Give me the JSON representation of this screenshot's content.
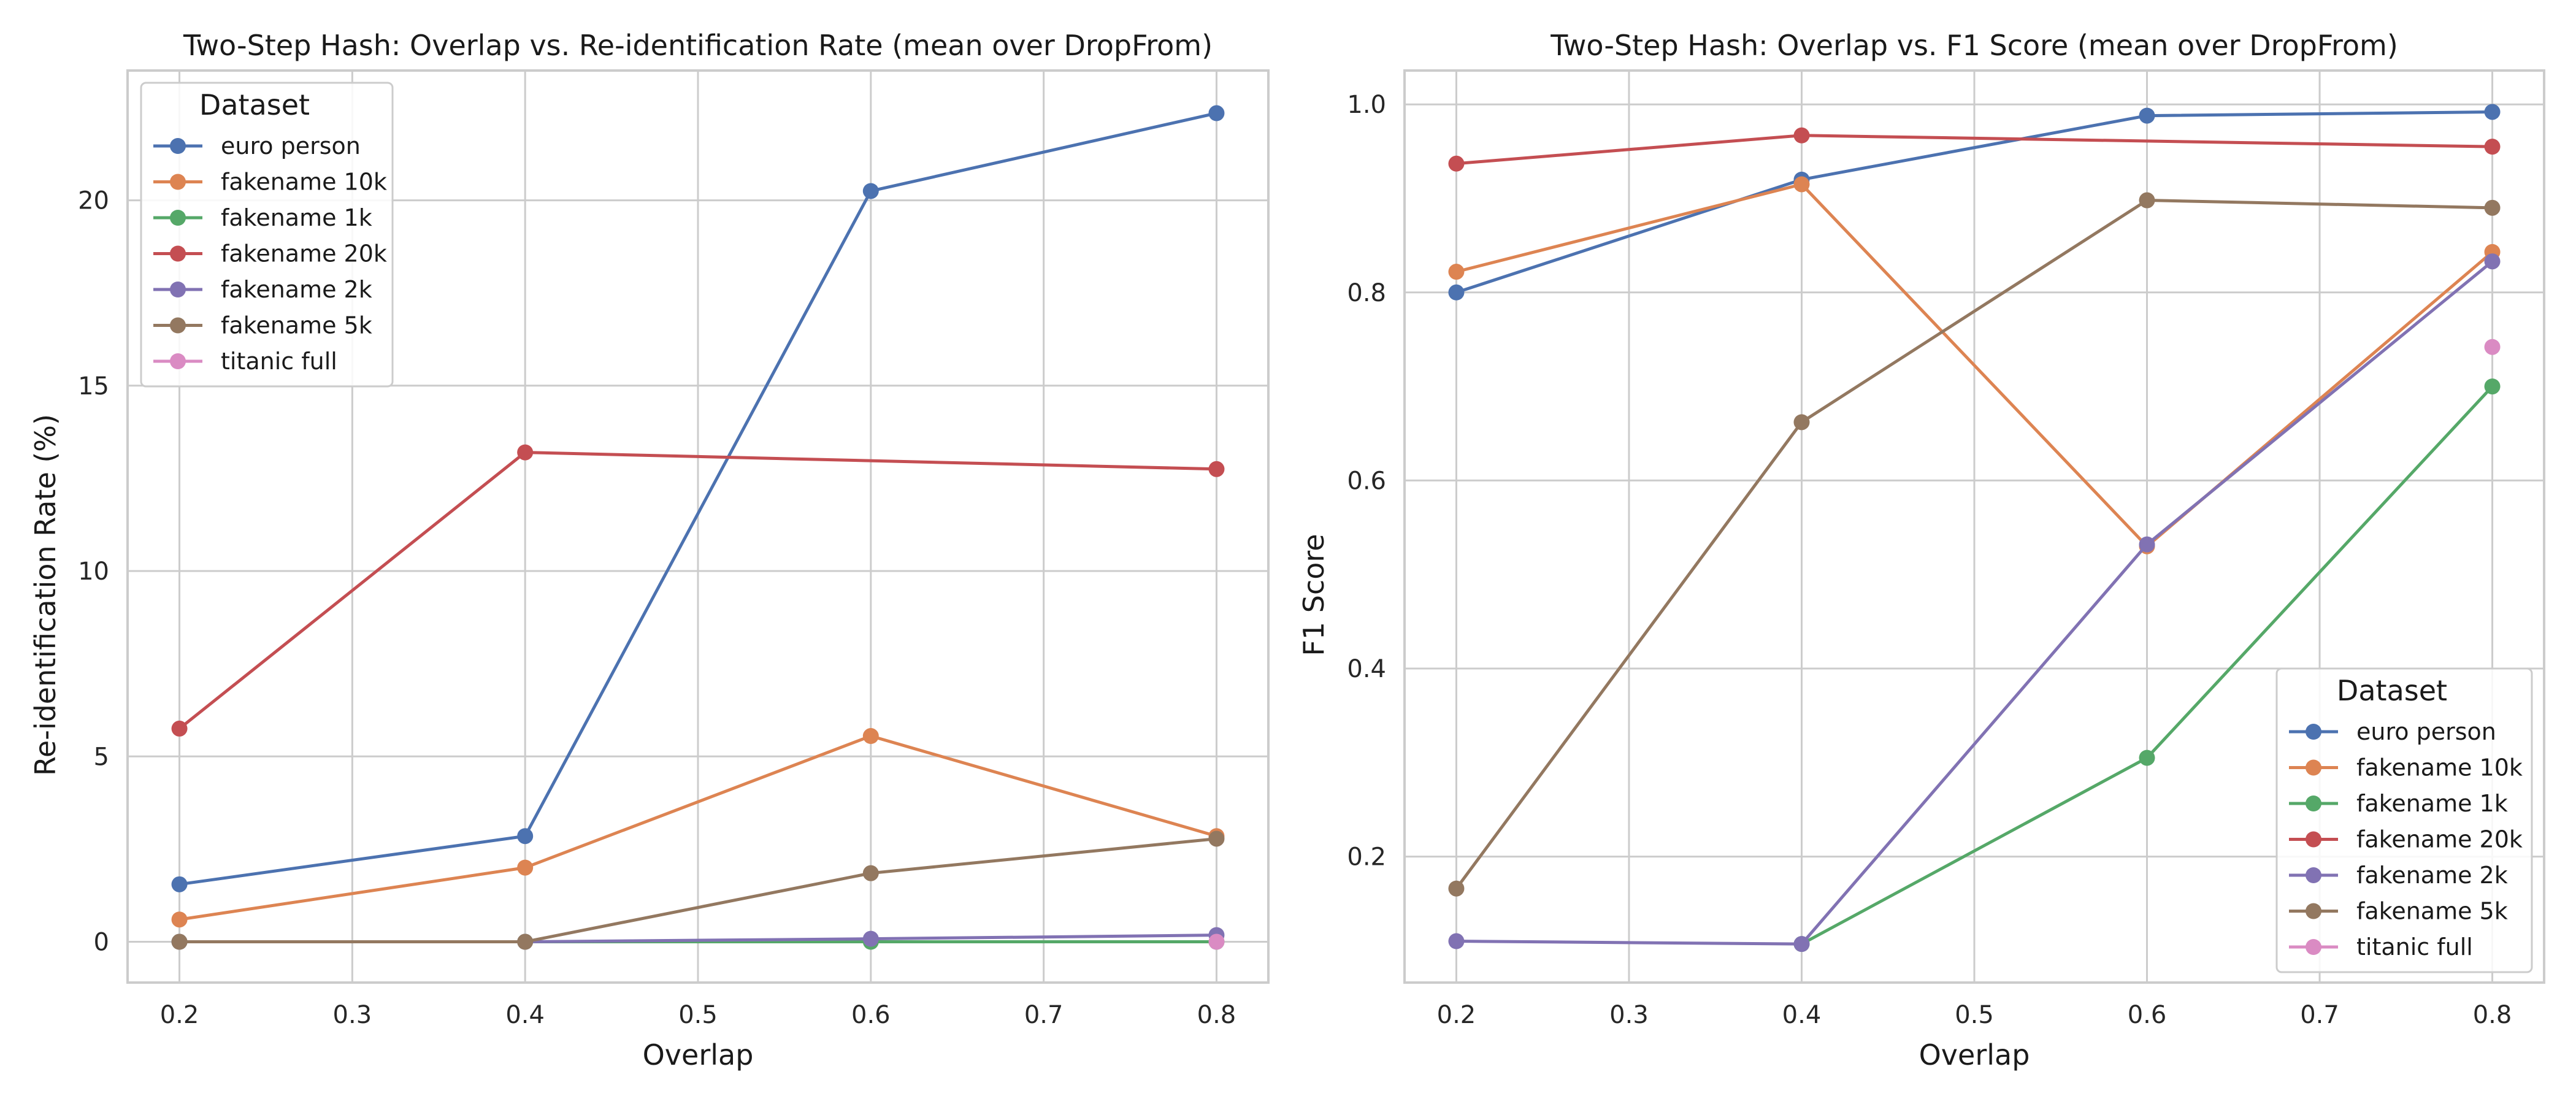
{
  "chart_data": [
    {
      "type": "line",
      "title": "Two-Step Hash: Overlap vs. Re-identification Rate (mean over DropFrom)",
      "xlabel": "Overlap",
      "ylabel": "Re-identification Rate (%)",
      "xlim": [
        0.17,
        0.83
      ],
      "ylim": [
        -1.1,
        23.5
      ],
      "xticks": [
        0.2,
        0.3,
        0.4,
        0.5,
        0.6,
        0.7,
        0.8
      ],
      "yticks": [
        0,
        5,
        10,
        15,
        20
      ],
      "grid": true,
      "legend": {
        "title": "Dataset",
        "placement": "upper-left"
      },
      "series": [
        {
          "name": "euro person",
          "color": "#4c72b0",
          "x": [
            0.2,
            0.4,
            0.6,
            0.8
          ],
          "y": [
            1.55,
            2.85,
            20.25,
            22.35
          ]
        },
        {
          "name": "fakename 10k",
          "color": "#dd8452",
          "x": [
            0.2,
            0.4,
            0.6,
            0.8
          ],
          "y": [
            0.6,
            2.0,
            5.55,
            2.85
          ]
        },
        {
          "name": "fakename 1k",
          "color": "#55a868",
          "x": [
            0.2,
            0.4,
            0.6,
            0.8
          ],
          "y": [
            0.0,
            0.0,
            0.0,
            0.0
          ]
        },
        {
          "name": "fakename 20k",
          "color": "#c44e52",
          "x": [
            0.2,
            0.4,
            0.6,
            0.8
          ],
          "y": [
            5.75,
            13.2,
            null,
            12.75
          ]
        },
        {
          "name": "fakename 2k",
          "color": "#8172b3",
          "x": [
            0.2,
            0.4,
            0.6,
            0.8
          ],
          "y": [
            0.0,
            0.0,
            0.08,
            0.18
          ]
        },
        {
          "name": "fakename 5k",
          "color": "#937860",
          "x": [
            0.2,
            0.4,
            0.6,
            0.8
          ],
          "y": [
            0.0,
            0.0,
            1.85,
            2.78
          ]
        },
        {
          "name": "titanic full",
          "color": "#da8bc3",
          "x": [
            0.8
          ],
          "y": [
            0.0
          ]
        }
      ]
    },
    {
      "type": "line",
      "title": "Two-Step Hash: Overlap vs. F1 Score (mean over DropFrom)",
      "xlabel": "Overlap",
      "ylabel": "F1 Score",
      "xlim": [
        0.17,
        0.83
      ],
      "ylim": [
        0.066,
        1.036
      ],
      "xticks": [
        0.2,
        0.3,
        0.4,
        0.5,
        0.6,
        0.7,
        0.8
      ],
      "yticks": [
        0.2,
        0.4,
        0.6,
        0.8,
        1.0
      ],
      "grid": true,
      "legend": {
        "title": "Dataset",
        "placement": "lower-right"
      },
      "series": [
        {
          "name": "euro person",
          "color": "#4c72b0",
          "x": [
            0.2,
            0.4,
            0.6,
            0.8
          ],
          "y": [
            0.8,
            0.92,
            0.988,
            0.992
          ]
        },
        {
          "name": "fakename 10k",
          "color": "#dd8452",
          "x": [
            0.2,
            0.4,
            0.6,
            0.8
          ],
          "y": [
            0.822,
            0.915,
            0.53,
            0.843
          ]
        },
        {
          "name": "fakename 1k",
          "color": "#55a868",
          "x": [
            0.4,
            0.6,
            0.8
          ],
          "y": [
            0.107,
            0.305,
            0.7
          ]
        },
        {
          "name": "fakename 20k",
          "color": "#c44e52",
          "x": [
            0.2,
            0.4,
            0.8
          ],
          "y": [
            0.937,
            0.967,
            0.955
          ]
        },
        {
          "name": "fakename 2k",
          "color": "#8172b3",
          "x": [
            0.2,
            0.4,
            0.6,
            0.8
          ],
          "y": [
            0.11,
            0.107,
            0.532,
            0.833
          ]
        },
        {
          "name": "fakename 5k",
          "color": "#937860",
          "x": [
            0.2,
            0.4,
            0.6,
            0.8
          ],
          "y": [
            0.166,
            0.662,
            0.898,
            0.89
          ]
        },
        {
          "name": "titanic full",
          "color": "#da8bc3",
          "x": [
            0.8
          ],
          "y": [
            0.742
          ]
        }
      ]
    }
  ]
}
